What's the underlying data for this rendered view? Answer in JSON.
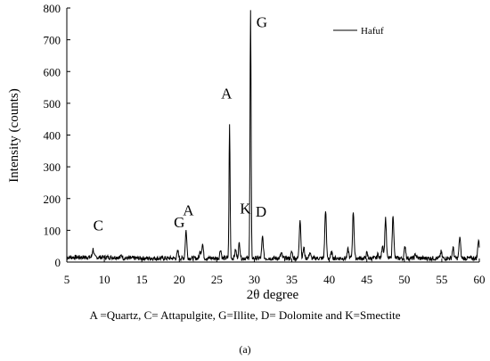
{
  "chart_data": {
    "type": "line",
    "xlabel": "2θ degree",
    "ylabel": "Intensity (counts)",
    "xlim": [
      5,
      60
    ],
    "ylim": [
      0,
      800
    ],
    "xticks": [
      5,
      10,
      15,
      20,
      25,
      30,
      35,
      40,
      45,
      50,
      55,
      60
    ],
    "yticks": [
      0,
      100,
      200,
      300,
      400,
      500,
      600,
      700,
      800
    ],
    "grid": false,
    "legend_position": "top-right",
    "series": [
      {
        "name": "Hafuf",
        "color": "#000000",
        "baseline": 12,
        "peaks": [
          {
            "x": 8.5,
            "y": 38
          },
          {
            "x": 12.3,
            "y": 22
          },
          {
            "x": 19.8,
            "y": 35
          },
          {
            "x": 20.9,
            "y": 100
          },
          {
            "x": 22.8,
            "y": 35
          },
          {
            "x": 23.1,
            "y": 57
          },
          {
            "x": 25.5,
            "y": 40
          },
          {
            "x": 26.7,
            "y": 433
          },
          {
            "x": 27.5,
            "y": 38
          },
          {
            "x": 28.0,
            "y": 60
          },
          {
            "x": 29.5,
            "y": 792
          },
          {
            "x": 31.1,
            "y": 80
          },
          {
            "x": 33.6,
            "y": 28
          },
          {
            "x": 35.0,
            "y": 32
          },
          {
            "x": 36.1,
            "y": 137
          },
          {
            "x": 36.6,
            "y": 45
          },
          {
            "x": 37.4,
            "y": 30
          },
          {
            "x": 39.5,
            "y": 165
          },
          {
            "x": 40.3,
            "y": 30
          },
          {
            "x": 42.5,
            "y": 40
          },
          {
            "x": 43.2,
            "y": 160
          },
          {
            "x": 45.0,
            "y": 28
          },
          {
            "x": 46.5,
            "y": 25
          },
          {
            "x": 47.1,
            "y": 55
          },
          {
            "x": 47.5,
            "y": 140
          },
          {
            "x": 48.5,
            "y": 150
          },
          {
            "x": 50.1,
            "y": 50
          },
          {
            "x": 51.5,
            "y": 25
          },
          {
            "x": 54.9,
            "y": 32
          },
          {
            "x": 56.5,
            "y": 45
          },
          {
            "x": 57.4,
            "y": 80
          },
          {
            "x": 59.9,
            "y": 72
          }
        ]
      }
    ],
    "annotations": [
      {
        "text": "C",
        "x": 9.2,
        "y": 100
      },
      {
        "text": "G",
        "x": 20.0,
        "y": 110
      },
      {
        "text": "A",
        "x": 21.2,
        "y": 148
      },
      {
        "text": "A",
        "x": 26.3,
        "y": 515
      },
      {
        "text": "K",
        "x": 28.8,
        "y": 153
      },
      {
        "text": "D",
        "x": 30.9,
        "y": 143
      },
      {
        "text": "G",
        "x": 31.0,
        "y": 740
      }
    ]
  },
  "legend_caption": "A =Quartz, C= Attapulgite, G=Illite, D= Dolomite and K=Smectite",
  "panel_label": "(a)"
}
